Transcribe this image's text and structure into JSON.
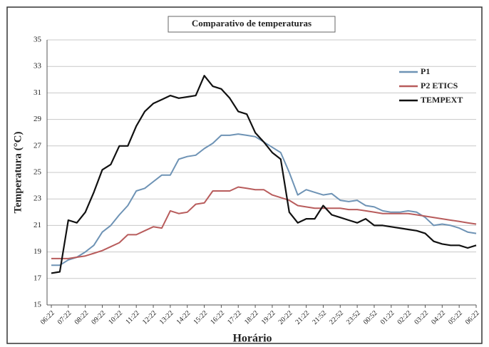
{
  "chart_data": {
    "type": "line",
    "title": "Comparativo de temperaturas",
    "x_label": "Horário",
    "y_label": "Temperatura (°C)",
    "categories": [
      "06:22",
      null,
      "07:22",
      null,
      "08:22",
      null,
      "09:22",
      null,
      "10:22",
      null,
      "11:22",
      null,
      "12:22",
      null,
      "13:22",
      null,
      "14:22",
      null,
      "15:22",
      null,
      "16:22",
      null,
      "17:22",
      null,
      "18:22",
      null,
      "19:22",
      null,
      "20:22",
      null,
      "21:22",
      null,
      "21:52",
      null,
      "22:52",
      null,
      "23:52",
      null,
      "00:52",
      null,
      "01:22",
      null,
      "02:22",
      null,
      "03:22",
      null,
      "04:22",
      null,
      "05:22",
      null,
      "06:22"
    ],
    "series": [
      {
        "name": "P1",
        "color": "#6e93b5",
        "values": [
          18.0,
          18.0,
          18.4,
          18.6,
          19.0,
          19.5,
          20.5,
          21.0,
          21.8,
          22.5,
          23.6,
          23.8,
          24.3,
          24.8,
          24.8,
          26.0,
          26.2,
          26.3,
          26.8,
          27.2,
          27.8,
          27.8,
          27.9,
          27.8,
          27.7,
          27.3,
          26.9,
          26.5,
          25.0,
          23.3,
          23.7,
          23.5,
          23.3,
          23.4,
          22.9,
          22.8,
          22.9,
          22.5,
          22.4,
          22.1,
          22.0,
          22.0,
          22.1,
          22.0,
          21.6,
          21.0,
          21.1,
          21.0,
          20.8,
          20.5,
          20.4
        ]
      },
      {
        "name": "P2 ETICS",
        "color": "#b85c5c",
        "values": [
          18.5,
          18.5,
          18.5,
          18.6,
          18.7,
          18.9,
          19.1,
          19.4,
          19.7,
          20.3,
          20.3,
          20.6,
          20.9,
          20.8,
          22.1,
          21.9,
          22.0,
          22.6,
          22.7,
          23.6,
          23.6,
          23.6,
          23.9,
          23.8,
          23.7,
          23.7,
          23.3,
          23.1,
          22.9,
          22.5,
          22.4,
          22.3,
          22.3,
          22.3,
          22.3,
          22.2,
          22.2,
          22.1,
          22.0,
          21.9,
          21.9,
          21.9,
          21.9,
          21.8,
          21.7,
          21.6,
          21.5,
          21.4,
          21.3,
          21.2,
          21.1
        ]
      },
      {
        "name": "TEMPEXT",
        "color": "#111111",
        "values": [
          17.4,
          17.5,
          21.4,
          21.2,
          22.0,
          23.5,
          25.2,
          25.6,
          27.0,
          27.0,
          28.5,
          29.6,
          30.2,
          30.5,
          30.8,
          30.6,
          30.7,
          30.8,
          32.3,
          31.5,
          31.3,
          30.6,
          29.6,
          29.4,
          28.0,
          27.3,
          26.5,
          26.0,
          22.0,
          21.2,
          21.5,
          21.5,
          22.5,
          21.8,
          21.6,
          21.4,
          21.2,
          21.5,
          21.0,
          21.0,
          20.9,
          20.8,
          20.7,
          20.6,
          20.4,
          19.8,
          19.6,
          19.5,
          19.5,
          19.3,
          19.5
        ]
      }
    ],
    "ylim": [
      15,
      35
    ],
    "yticks": [
      15,
      17,
      19,
      21,
      23,
      25,
      27,
      29,
      31,
      33,
      35
    ],
    "grid": true,
    "legend": "upper right"
  }
}
